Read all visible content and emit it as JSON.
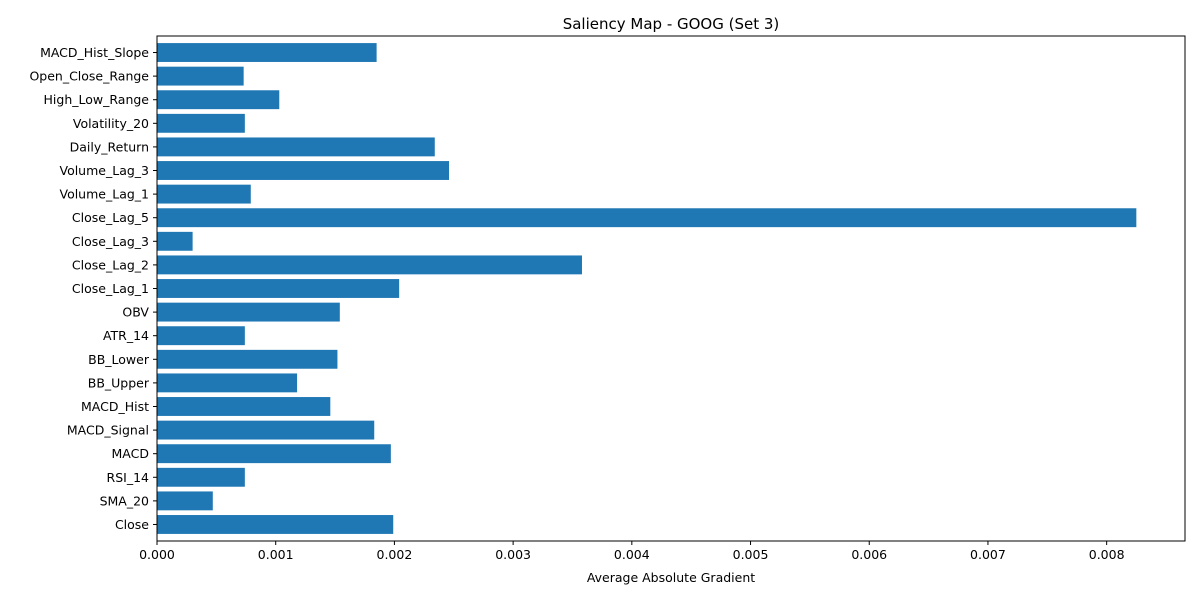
{
  "chart_data": {
    "type": "bar",
    "orientation": "horizontal",
    "title": "Saliency Map - GOOG (Set 3)",
    "xlabel": "Average Absolute Gradient",
    "ylabel": "",
    "xlim": [
      0,
      0.00866
    ],
    "xticks": [
      0.0,
      0.001,
      0.002,
      0.003,
      0.004,
      0.005,
      0.006,
      0.007,
      0.008
    ],
    "xtick_labels": [
      "0.000",
      "0.001",
      "0.002",
      "0.003",
      "0.004",
      "0.005",
      "0.006",
      "0.007",
      "0.008"
    ],
    "grid": false,
    "bar_color": "#1f77b4",
    "categories": [
      "Close",
      "SMA_20",
      "RSI_14",
      "MACD",
      "MACD_Signal",
      "MACD_Hist",
      "BB_Upper",
      "BB_Lower",
      "ATR_14",
      "OBV",
      "Close_Lag_1",
      "Close_Lag_2",
      "Close_Lag_3",
      "Close_Lag_5",
      "Volume_Lag_1",
      "Volume_Lag_3",
      "Daily_Return",
      "Volatility_20",
      "High_Low_Range",
      "Open_Close_Range",
      "MACD_Hist_Slope"
    ],
    "values": [
      0.00199,
      0.00047,
      0.00074,
      0.00197,
      0.00183,
      0.00146,
      0.00118,
      0.00152,
      0.00074,
      0.00154,
      0.00204,
      0.00358,
      0.0003,
      0.00825,
      0.00079,
      0.00246,
      0.00234,
      0.00074,
      0.00103,
      0.00073,
      0.00185
    ]
  }
}
